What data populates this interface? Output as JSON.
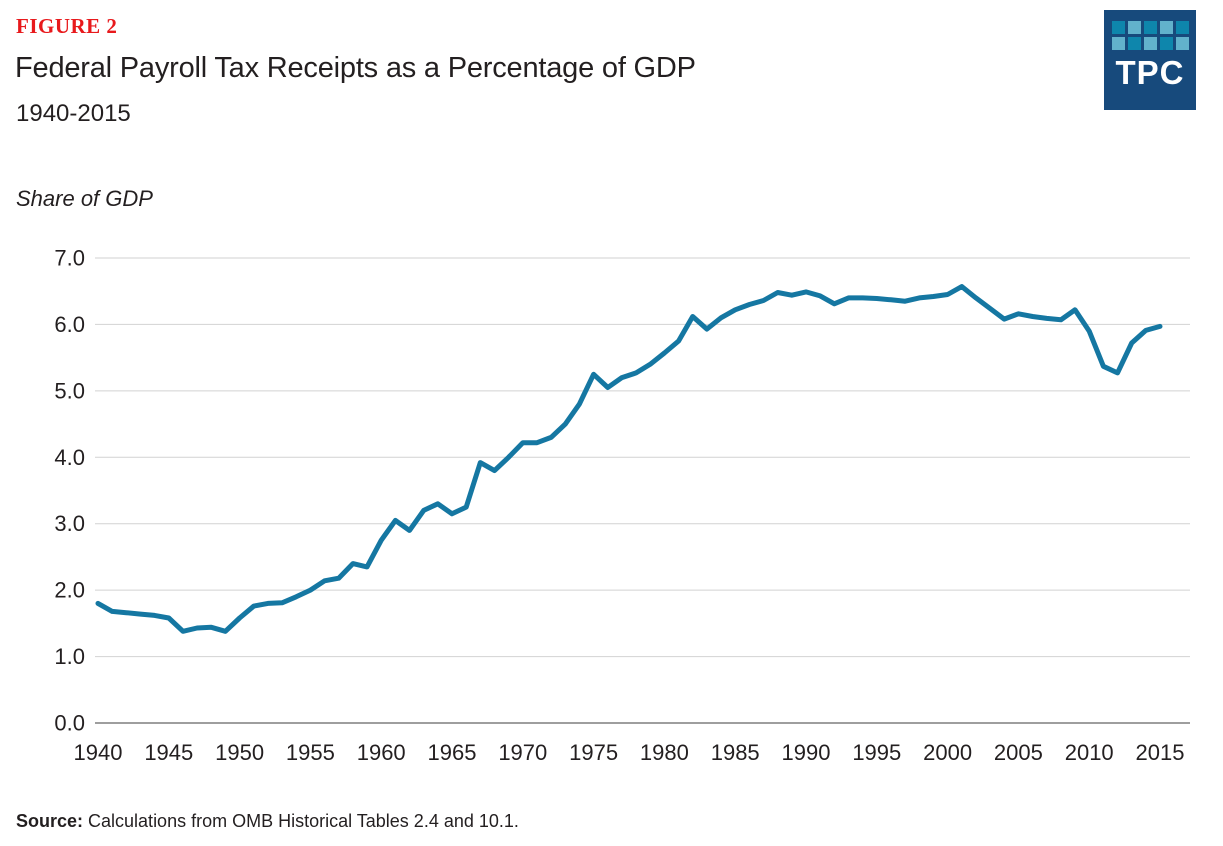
{
  "figure_label": "FIGURE 2",
  "title": "Federal Payroll Tax Receipts as a Percentage of GDP",
  "subtitle": "1940-2015",
  "axis_unit_label": "Share of GDP",
  "source": {
    "label": "Source:",
    "text": " Calculations from OMB Historical Tables 2.4 and 10.1."
  },
  "logo": {
    "text": "TPC",
    "background": "#174A7C",
    "square_dark": "#0E86AC",
    "square_light": "#62B2CC"
  },
  "colors": {
    "figure_label_red": "#E8191C",
    "line": "#1577A2",
    "gridline": "#D2D2D2",
    "baseline": "#7F7F7F",
    "text": "#231F20"
  },
  "chart_data": {
    "type": "line",
    "title": "Federal Payroll Tax Receipts as a Percentage of GDP",
    "subtitle": "1940-2015",
    "xlabel": "",
    "ylabel": "Share of GDP",
    "grid": true,
    "legend": false,
    "xlim": [
      1940,
      2015
    ],
    "ylim": [
      0,
      7
    ],
    "xticks": [
      1940,
      1945,
      1950,
      1955,
      1960,
      1965,
      1970,
      1975,
      1980,
      1985,
      1990,
      1995,
      2000,
      2005,
      2010,
      2015
    ],
    "ytick_labels": [
      "0.0",
      "1.0",
      "2.0",
      "3.0",
      "4.0",
      "5.0",
      "6.0",
      "7.0"
    ],
    "x": [
      1940,
      1941,
      1942,
      1943,
      1944,
      1945,
      1946,
      1947,
      1948,
      1949,
      1950,
      1951,
      1952,
      1953,
      1954,
      1955,
      1956,
      1957,
      1958,
      1959,
      1960,
      1961,
      1962,
      1963,
      1964,
      1965,
      1966,
      1967,
      1968,
      1969,
      1970,
      1971,
      1972,
      1973,
      1974,
      1975,
      1976,
      1977,
      1978,
      1979,
      1980,
      1981,
      1982,
      1983,
      1984,
      1985,
      1986,
      1987,
      1988,
      1989,
      1990,
      1991,
      1992,
      1993,
      1994,
      1995,
      1996,
      1997,
      1998,
      1999,
      2000,
      2001,
      2002,
      2003,
      2004,
      2005,
      2006,
      2007,
      2008,
      2009,
      2010,
      2011,
      2012,
      2013,
      2014,
      2015
    ],
    "series": [
      {
        "name": "Federal payroll tax receipts (% of GDP)",
        "values": [
          1.8,
          1.68,
          1.66,
          1.64,
          1.62,
          1.58,
          1.38,
          1.43,
          1.44,
          1.38,
          1.58,
          1.76,
          1.8,
          1.81,
          1.9,
          2.0,
          2.14,
          2.18,
          2.4,
          2.35,
          2.75,
          3.05,
          2.9,
          3.2,
          3.3,
          3.15,
          3.25,
          3.92,
          3.8,
          4.0,
          4.22,
          4.22,
          4.3,
          4.5,
          4.8,
          5.25,
          5.05,
          5.2,
          5.27,
          5.4,
          5.57,
          5.75,
          6.12,
          5.93,
          6.1,
          6.22,
          6.3,
          6.36,
          6.48,
          6.44,
          6.49,
          6.43,
          6.31,
          6.4,
          6.4,
          6.39,
          6.37,
          6.35,
          6.4,
          6.42,
          6.45,
          6.57,
          6.4,
          6.24,
          6.08,
          6.16,
          6.12,
          6.09,
          6.07,
          6.22,
          5.9,
          5.37,
          5.27,
          5.72,
          5.91,
          5.97
        ]
      }
    ]
  }
}
